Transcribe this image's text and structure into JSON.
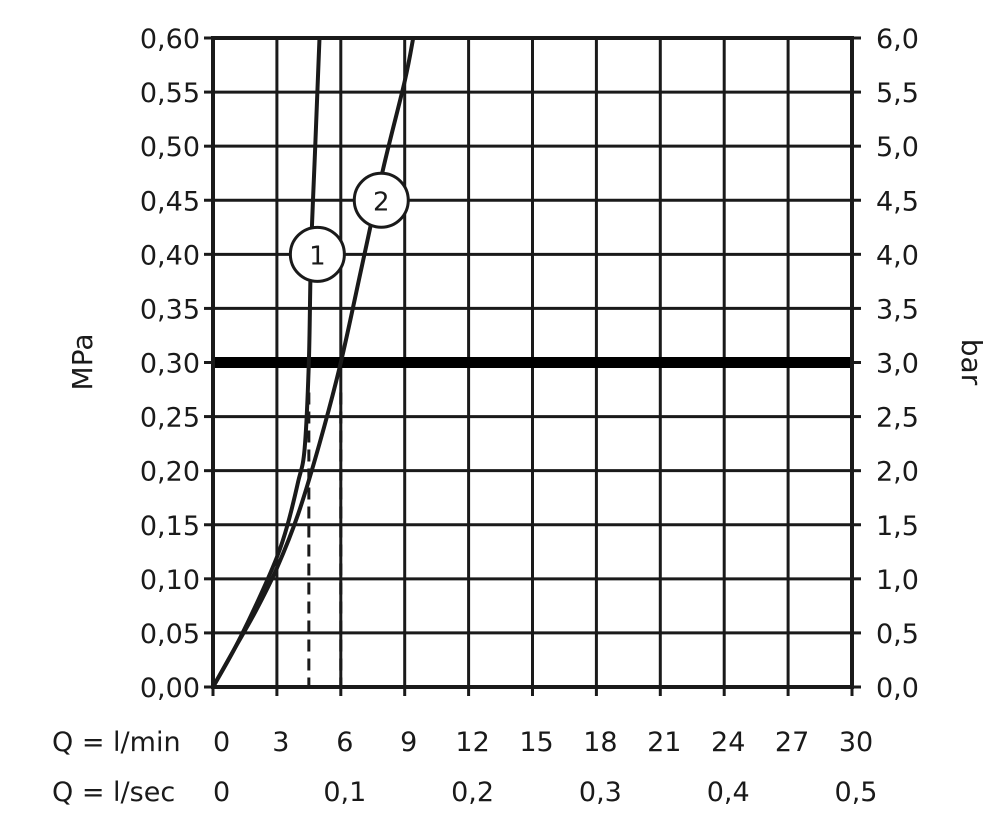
{
  "chart_data": {
    "type": "line",
    "xlabel_rows": [
      {
        "label": "Q = l/min",
        "ticks": [
          "0",
          "3",
          "6",
          "9",
          "12",
          "15",
          "18",
          "21",
          "24",
          "27",
          "30"
        ]
      },
      {
        "label": "Q = l/sec",
        "ticks": [
          "0",
          "0,1",
          "0,2",
          "0,3",
          "0,4",
          "0,5"
        ]
      }
    ],
    "ylabel_left": "MPa",
    "ylabel_right": "bar",
    "xlim": [
      0,
      30
    ],
    "ylim": [
      0,
      0.6
    ],
    "y_ticks_left": [
      "0,00",
      "0,05",
      "0,10",
      "0,15",
      "0,20",
      "0,25",
      "0,30",
      "0,35",
      "0,40",
      "0,45",
      "0,50",
      "0,55",
      "0,60"
    ],
    "y_ticks_right": [
      "0,0",
      "0,5",
      "1,0",
      "1,5",
      "2,0",
      "2,5",
      "3,0",
      "3,5",
      "4,0",
      "4,5",
      "5,0",
      "5,5",
      "6,0"
    ],
    "grid": true,
    "reference_line": {
      "y": 0.3
    },
    "series": [
      {
        "name": "1",
        "x": [
          0,
          1,
          2,
          3,
          3.5,
          4.0,
          4.3,
          4.5,
          4.6,
          4.8,
          5.0
        ],
        "y": [
          0,
          0.035,
          0.075,
          0.12,
          0.15,
          0.19,
          0.22,
          0.3,
          0.4,
          0.5,
          0.6
        ]
      },
      {
        "name": "2",
        "x": [
          0,
          1,
          2,
          3,
          4,
          5,
          6,
          7,
          8,
          9,
          9.4
        ],
        "y": [
          0,
          0.035,
          0.07,
          0.11,
          0.16,
          0.225,
          0.3,
          0.39,
          0.48,
          0.56,
          0.6
        ]
      }
    ],
    "markers": [
      {
        "series": "1",
        "x": 4.5,
        "y": 0.3
      },
      {
        "series": "2",
        "x": 6.0,
        "y": 0.3
      }
    ]
  }
}
